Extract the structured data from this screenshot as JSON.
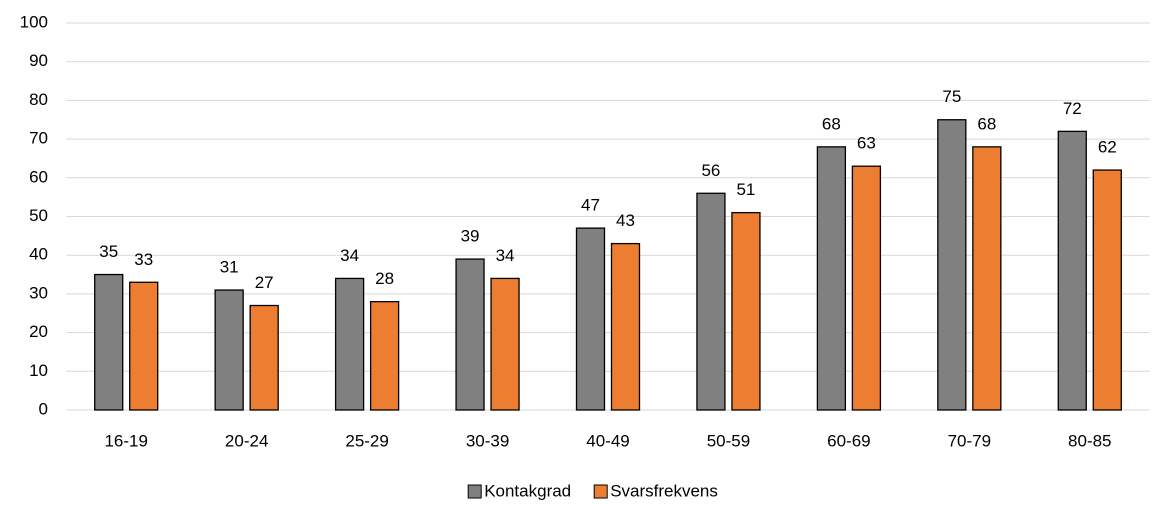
{
  "chart_data": {
    "type": "bar",
    "categories": [
      "16-19",
      "20-24",
      "25-29",
      "30-39",
      "40-49",
      "50-59",
      "60-69",
      "70-79",
      "80-85"
    ],
    "series": [
      {
        "name": "Kontakgrad",
        "color": "#808080",
        "values": [
          35,
          31,
          34,
          39,
          47,
          56,
          68,
          75,
          72
        ]
      },
      {
        "name": "Svarsfrekvens",
        "color": "#ed7d31",
        "values": [
          33,
          27,
          28,
          34,
          43,
          51,
          63,
          68,
          62
        ]
      }
    ],
    "ylim": [
      0,
      100
    ],
    "yticks": [
      0,
      10,
      20,
      30,
      40,
      50,
      60,
      70,
      80,
      90,
      100
    ],
    "grid": true,
    "legend": "bottom"
  }
}
